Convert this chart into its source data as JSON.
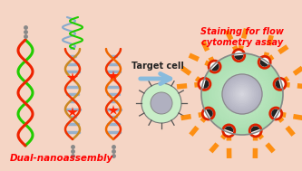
{
  "bg_color": "#f5d5c5",
  "border_color": "#88bbdd",
  "title_left": "Dual-nanoassembly",
  "title_right": "Staining for flow\ncytometry assay",
  "arrow_label": "Target cell",
  "text_color": "#ff0000",
  "arrow_color": "#88bbdd",
  "cell_green_outer": "#a8ddb0",
  "cell_green_grad": "#c8eec8",
  "nucleus_light": "#d8d8e0",
  "nucleus_dark": "#b0b0c0",
  "orange_color": "#ff8800",
  "red_ring": "#dd2200",
  "green_strand": "#22cc00",
  "red_strand": "#ee2200",
  "dna_gold": "#cc8822",
  "dna_red": "#ee3300",
  "dna_blue_gray": "#88aacc",
  "star_red": "#ff2200",
  "spike_color": "#555555",
  "dot_color": "#888888",
  "figw": 3.33,
  "figh": 1.89,
  "dpi": 100
}
